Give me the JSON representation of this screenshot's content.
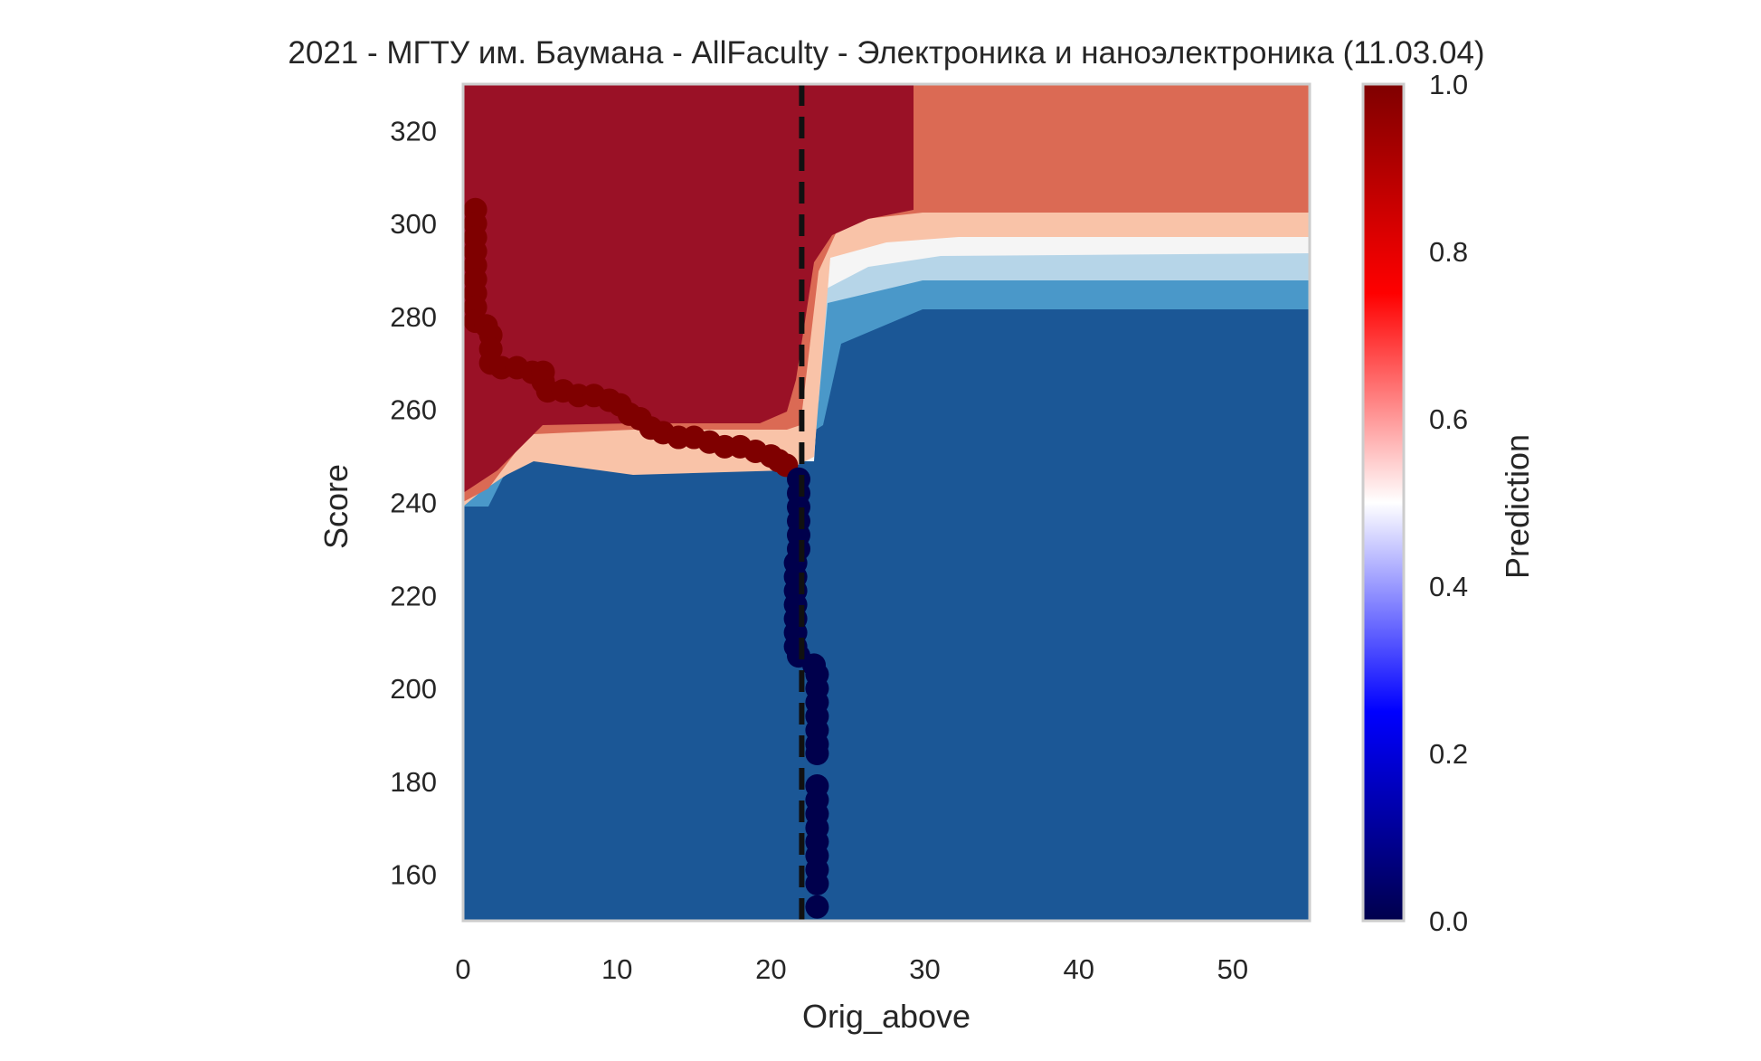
{
  "chart_data": {
    "type": "heatmap",
    "title": "2021 - МГТУ им. Баумана - AllFaculty - Электроника и наноэлектроника (11.03.04)",
    "xlabel": "Orig_above",
    "ylabel": "Score",
    "xlim": [
      0,
      55
    ],
    "ylim": [
      150,
      330
    ],
    "xticks": [
      0,
      10,
      20,
      30,
      40,
      50
    ],
    "yticks": [
      160,
      180,
      200,
      220,
      240,
      260,
      280,
      300,
      320
    ],
    "grid": false,
    "colorbar": {
      "label": "Prediction",
      "cmap": "seismic",
      "range": [
        0,
        1
      ],
      "ticks": [
        "0.0",
        "0.2",
        "0.4",
        "0.6",
        "0.8",
        "1.0"
      ],
      "stops": [
        "#00004c",
        "#0000ff",
        "#ffffff",
        "#ff0000",
        "#7f0000"
      ]
    },
    "contour_colors": {
      "very_low": "#1b5796",
      "low": "#4a98c9",
      "mid_low": "#b6d5e8",
      "mid": "#f5f5f5",
      "mid_high": "#f9c3a8",
      "high": "#db6a54",
      "very_high": "#9a1126"
    },
    "threshold_line": {
      "x": 22,
      "style": "dashed",
      "color": "#111111"
    },
    "points": {
      "admitted_color": "#7f0000",
      "rejected_color": "#00004c",
      "admitted": [
        [
          0.8,
          303
        ],
        [
          0.8,
          300
        ],
        [
          0.8,
          297
        ],
        [
          0.8,
          294
        ],
        [
          0.8,
          291
        ],
        [
          0.8,
          288
        ],
        [
          0.8,
          285
        ],
        [
          0.8,
          282
        ],
        [
          0.8,
          279
        ],
        [
          1.5,
          278
        ],
        [
          1.8,
          276
        ],
        [
          1.8,
          273
        ],
        [
          1.8,
          270
        ],
        [
          2.5,
          269
        ],
        [
          3.5,
          269
        ],
        [
          4.5,
          268
        ],
        [
          5.2,
          268
        ],
        [
          5.2,
          266
        ],
        [
          5.5,
          264
        ],
        [
          6.5,
          264
        ],
        [
          7.5,
          263
        ],
        [
          8.5,
          263
        ],
        [
          9.5,
          262
        ],
        [
          10.2,
          261
        ],
        [
          10.8,
          259
        ],
        [
          11.5,
          258
        ],
        [
          12.2,
          256
        ],
        [
          13,
          255
        ],
        [
          14,
          254
        ],
        [
          15,
          254
        ],
        [
          16,
          253
        ],
        [
          17,
          252
        ],
        [
          18,
          252
        ],
        [
          19,
          251
        ],
        [
          20,
          250
        ],
        [
          20.5,
          249
        ],
        [
          21,
          248
        ]
      ],
      "rejected": [
        [
          21.8,
          245
        ],
        [
          21.8,
          242
        ],
        [
          21.8,
          239
        ],
        [
          21.8,
          236
        ],
        [
          21.8,
          233
        ],
        [
          21.8,
          230
        ],
        [
          21.6,
          227
        ],
        [
          21.6,
          224
        ],
        [
          21.6,
          221
        ],
        [
          21.6,
          218
        ],
        [
          21.6,
          215
        ],
        [
          21.6,
          212
        ],
        [
          21.6,
          209
        ],
        [
          21.8,
          207
        ],
        [
          22.8,
          205
        ],
        [
          23,
          203
        ],
        [
          23,
          200
        ],
        [
          23,
          197
        ],
        [
          23,
          194
        ],
        [
          23,
          191
        ],
        [
          23,
          188
        ],
        [
          23,
          186
        ],
        [
          23,
          179
        ],
        [
          23,
          176
        ],
        [
          23,
          173
        ],
        [
          23,
          170
        ],
        [
          23,
          167
        ],
        [
          23,
          164
        ],
        [
          23,
          161
        ],
        [
          23,
          158
        ],
        [
          23,
          153
        ]
      ]
    }
  }
}
